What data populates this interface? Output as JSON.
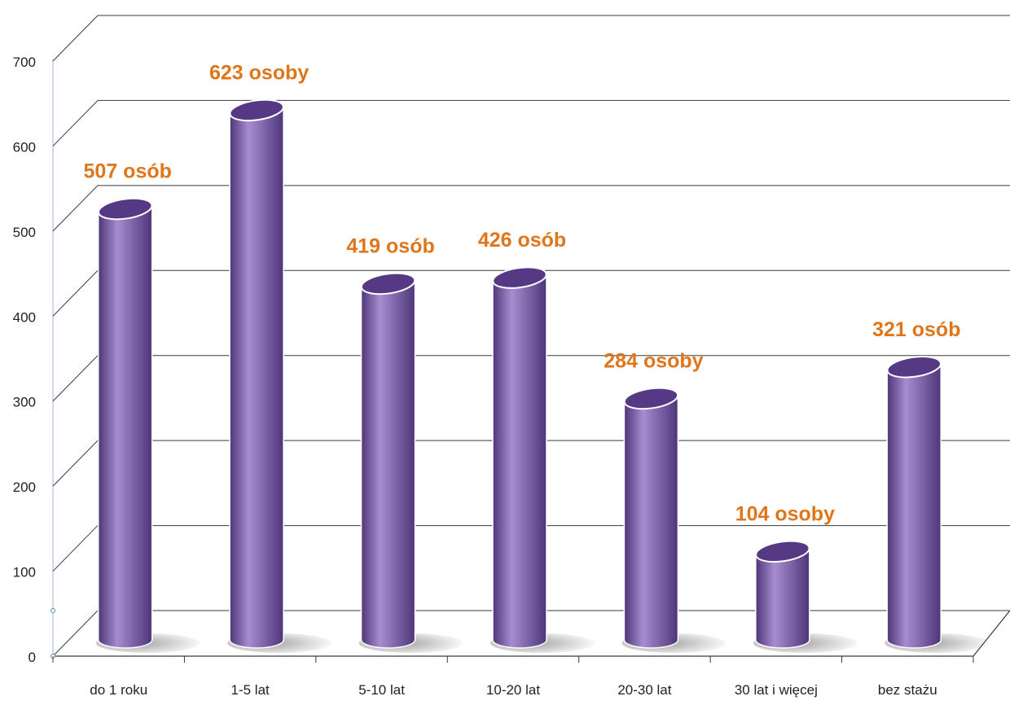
{
  "chart_data": {
    "type": "bar",
    "categories": [
      "do 1 roku",
      "1-5 lat",
      "5-10 lat",
      "10-20 lat",
      "20-30 lat",
      "30 lat i więcej",
      "bez stażu"
    ],
    "values": [
      507,
      623,
      419,
      426,
      284,
      104,
      321
    ],
    "data_labels": [
      "507 osób",
      "623 osoby",
      "419 osób",
      "426 osób",
      "284 osoby",
      "104 osoby",
      "321 osób"
    ],
    "y_ticks": [
      "0",
      "100",
      "200",
      "300",
      "400",
      "500",
      "600",
      "700"
    ],
    "ylim": [
      0,
      700
    ],
    "grid": true,
    "style": "3d-cylinder",
    "title": "",
    "xlabel": "",
    "ylabel": "",
    "colors": {
      "bar_main": "#7a5aa6",
      "bar_light": "#a58dd0",
      "bar_dark": "#4e3578",
      "bar_top": "#563985",
      "bar_outline": "#ffffff",
      "data_label": "#e0761b",
      "grid": "#3a3a3a",
      "axis_text": "#222222",
      "shadow": "#8a8a8a"
    }
  }
}
